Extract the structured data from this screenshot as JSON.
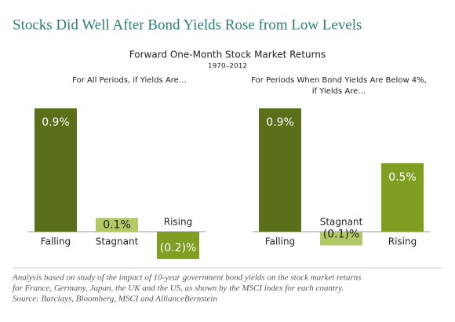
{
  "header": {
    "title": "Stocks Did Well After Bond Yields Rose from Low Levels",
    "subtitle": "Forward One-Month Stock Market Returns",
    "period": "1970–2012"
  },
  "chart_data": [
    {
      "type": "bar",
      "title": [
        "For All Periods, if Yields Are…"
      ],
      "categories": [
        "Falling",
        "Stagnant",
        "Rising"
      ],
      "values": [
        0.9,
        0.1,
        -0.2
      ],
      "value_labels": [
        "0.9%",
        "0.1%",
        "(0.2)%"
      ],
      "colors": [
        "#5b6f1a",
        "#b3c966",
        "#7f9e22"
      ]
    },
    {
      "type": "bar",
      "title": [
        "For Periods When Bond Yields Are Below 4%,",
        "if Yields Are…"
      ],
      "categories": [
        "Falling",
        "Stagnant",
        "Rising"
      ],
      "values": [
        0.9,
        -0.1,
        0.5
      ],
      "value_labels": [
        "0.9%",
        "(0.1)%",
        "0.5%"
      ],
      "colors": [
        "#5b6f1a",
        "#b3c966",
        "#7f9e22"
      ]
    }
  ],
  "footnote": [
    "Analysis based on study of the impact of 10-year government bond yields on the stock market returns",
    "for France, Germany, Japan, the  UK and the US, as shown by the MSCI index for each country.",
    "Source: Barclays, Bloomberg, MSCI and AllianceBernstein"
  ]
}
